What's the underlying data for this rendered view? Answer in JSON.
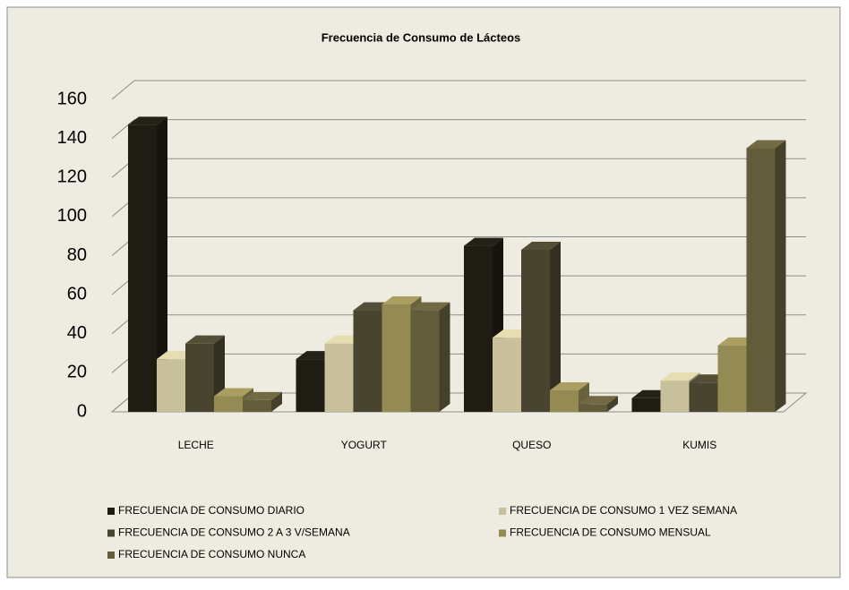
{
  "chart_data": {
    "type": "bar3d",
    "title": "Frecuencia de Consumo de Lácteos",
    "categories": [
      "LECHE",
      "YOGURT",
      "QUESO",
      "KUMIS"
    ],
    "series": [
      {
        "name": "FRECUENCIA DE CONSUMO DIARIO",
        "color": "#1f1d13",
        "values": [
          147,
          27,
          85,
          7
        ]
      },
      {
        "name": "FRECUENCIA DE CONSUMO 1 VEZ SEMANA",
        "color": "#c8c09a",
        "values": [
          27,
          35,
          38,
          16
        ]
      },
      {
        "name": "FRECUENCIA DE CONSUMO 2 A 3 V/SEMANA",
        "color": "#49442f",
        "values": [
          35,
          52,
          83,
          15
        ]
      },
      {
        "name": "FRECUENCIA DE CONSUMO MENSUAL",
        "color": "#948a54",
        "values": [
          8,
          55,
          11,
          34
        ]
      },
      {
        "name": "FRECUENCIA DE CONSUMO NUNCA",
        "color": "#625c3b",
        "values": [
          6,
          52,
          4,
          135
        ]
      }
    ],
    "ylim": [
      0,
      160
    ],
    "yticks": [
      0,
      20,
      40,
      60,
      80,
      100,
      120,
      140,
      160
    ],
    "grid": true
  }
}
